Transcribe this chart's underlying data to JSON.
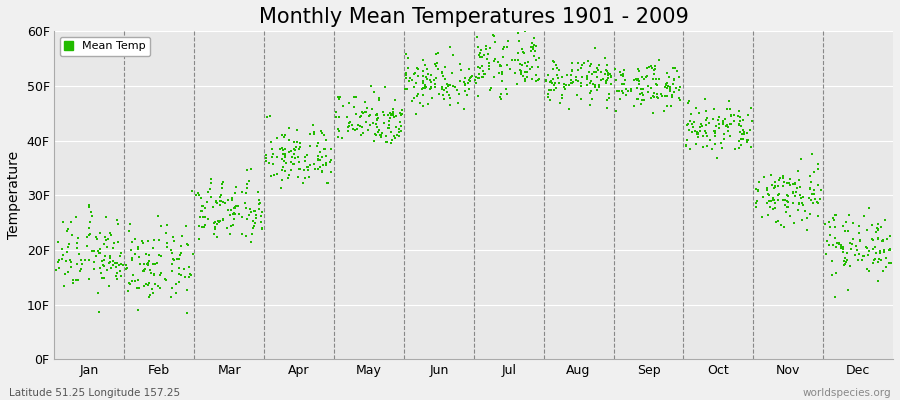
{
  "title": "Monthly Mean Temperatures 1901 - 2009",
  "ylabel": "Temperature",
  "ytick_labels": [
    "0F",
    "10F",
    "20F",
    "30F",
    "40F",
    "50F",
    "60F"
  ],
  "ytick_values": [
    0,
    10,
    20,
    30,
    40,
    50,
    60
  ],
  "ylim": [
    0,
    60
  ],
  "months": [
    "Jan",
    "Feb",
    "Mar",
    "Apr",
    "May",
    "Jun",
    "Jul",
    "Aug",
    "Sep",
    "Oct",
    "Nov",
    "Dec"
  ],
  "xlim": [
    0,
    12
  ],
  "dot_color": "#22bb00",
  "dot_size": 3,
  "background_color": "#f0f0f0",
  "plot_bg_color": "#e8e8e8",
  "legend_label": "Mean Temp",
  "bottom_left_text": "Latitude 51.25 Longitude 157.25",
  "bottom_right_text": "worldspecies.org",
  "title_fontsize": 15,
  "axis_fontsize": 10,
  "tick_fontsize": 9,
  "monthly_means": [
    19,
    17,
    27,
    37,
    44,
    51,
    54,
    51,
    50,
    42,
    30,
    21
  ],
  "monthly_std": [
    3.5,
    3.5,
    3.0,
    2.8,
    2.5,
    2.5,
    2.5,
    2.0,
    2.0,
    2.5,
    3.0,
    3.0
  ],
  "n_points": 109
}
